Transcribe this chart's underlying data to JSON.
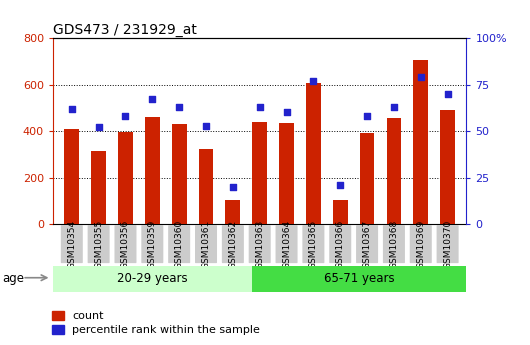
{
  "title": "GDS473 / 231929_at",
  "categories": [
    "GSM10354",
    "GSM10355",
    "GSM10356",
    "GSM10359",
    "GSM10360",
    "GSM10361",
    "GSM10362",
    "GSM10363",
    "GSM10364",
    "GSM10365",
    "GSM10366",
    "GSM10367",
    "GSM10368",
    "GSM10369",
    "GSM10370"
  ],
  "counts": [
    410,
    315,
    395,
    460,
    430,
    325,
    105,
    440,
    435,
    605,
    105,
    390,
    455,
    705,
    490
  ],
  "percentiles": [
    62,
    52,
    58,
    67,
    63,
    53,
    20,
    63,
    60,
    77,
    21,
    58,
    63,
    79,
    70
  ],
  "group1_label": "20-29 years",
  "group2_label": "65-71 years",
  "group1_count": 7,
  "bar_color": "#cc2200",
  "dot_color": "#2222cc",
  "group1_bg": "#ccffcc",
  "group2_bg": "#44dd44",
  "tick_bg": "#cccccc",
  "left_axis_color": "#cc2200",
  "right_axis_color": "#2222cc",
  "ylim_left": [
    0,
    800
  ],
  "ylim_right": [
    0,
    100
  ],
  "yticks_left": [
    0,
    200,
    400,
    600,
    800
  ],
  "yticks_right": [
    0,
    25,
    50,
    75,
    100
  ],
  "legend_count": "count",
  "legend_pct": "percentile rank within the sample",
  "age_label": "age"
}
